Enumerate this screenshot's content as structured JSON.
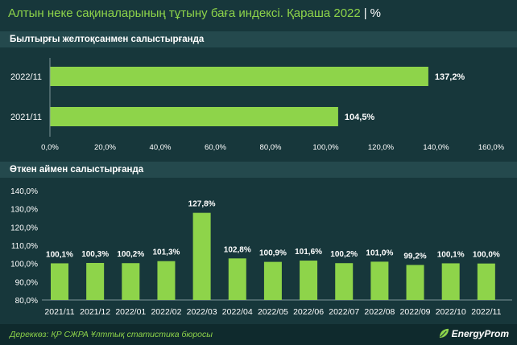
{
  "header": {
    "title": "Алтын неке сақиналарының тұтыну баға индексі. Қараша 2022",
    "separator": "|",
    "unit": "%"
  },
  "colors": {
    "background": "#17373b",
    "bar": "#8ed44a",
    "accent_text": "#8ed44a",
    "axis_text": "#ffffff"
  },
  "chart_data": [
    {
      "type": "bar",
      "orientation": "horizontal",
      "section_title": "Былтырғы желтоқсанмен салыстырғанда",
      "categories": [
        "2022/11",
        "2021/11"
      ],
      "values": [
        137.2,
        104.5
      ],
      "value_labels": [
        "137,2%",
        "104,5%"
      ],
      "xlim": [
        0,
        160
      ],
      "x_ticks": [
        0,
        20,
        40,
        60,
        80,
        100,
        120,
        140,
        160
      ],
      "x_tick_labels": [
        "0,0%",
        "20,0%",
        "40,0%",
        "60,0%",
        "80,0%",
        "100,0%",
        "120,0%",
        "140,0%",
        "160,0%"
      ],
      "grid": false
    },
    {
      "type": "bar",
      "orientation": "vertical",
      "section_title": "Өткен аймен салыстырғанда",
      "categories": [
        "2021/11",
        "2021/12",
        "2022/01",
        "2022/02",
        "2022/03",
        "2022/04",
        "2022/05",
        "2022/06",
        "2022/07",
        "2022/08",
        "2022/09",
        "2022/10",
        "2022/11"
      ],
      "values": [
        100.1,
        100.3,
        100.2,
        101.3,
        127.8,
        102.8,
        100.9,
        101.6,
        100.2,
        101.0,
        99.2,
        100.1,
        100.0
      ],
      "value_labels": [
        "100,1%",
        "100,3%",
        "100,2%",
        "101,3%",
        "127,8%",
        "102,8%",
        "100,9%",
        "101,6%",
        "100,2%",
        "101,0%",
        "99,2%",
        "100,1%",
        "100,0%"
      ],
      "ylim": [
        80,
        140
      ],
      "y_ticks": [
        80,
        90,
        100,
        110,
        120,
        130,
        140
      ],
      "y_tick_labels": [
        "80,0%",
        "90,0%",
        "100,0%",
        "110,0%",
        "120,0%",
        "130,0%",
        "140,0%"
      ],
      "grid": false
    }
  ],
  "footer": {
    "source": "Дереккөз: ҚР СЖРА Ұлттық статистика бюросы",
    "logo": "EnergyProm"
  }
}
